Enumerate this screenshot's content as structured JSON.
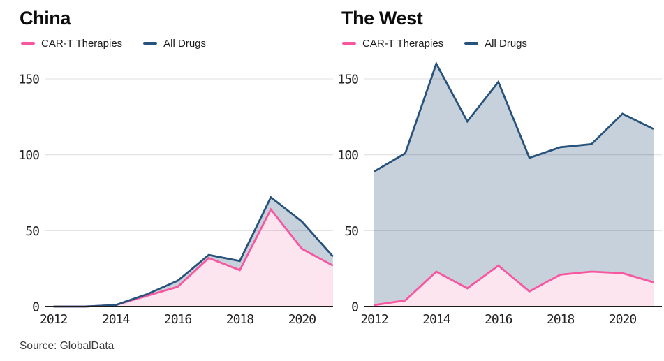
{
  "source_note": "Source: GlobalData",
  "colors": {
    "cart_line": "#f8569f",
    "cart_fill": "#fde5f0",
    "alldrugs_line": "#26527b",
    "alldrugs_fill": "#c7d1dc",
    "gridline": "rgba(0,0,0,0.10)",
    "axis_line": "#1b1b1b"
  },
  "chart_data": [
    {
      "type": "area",
      "title": "China",
      "x": [
        2012,
        2013,
        2014,
        2015,
        2016,
        2017,
        2018,
        2019,
        2020,
        2021
      ],
      "x_ticks": [
        2012,
        2014,
        2016,
        2018,
        2020
      ],
      "y_ticks": [
        0,
        50,
        100,
        150
      ],
      "ylim": [
        0,
        163
      ],
      "grid": "horizontal",
      "legend_position": "top-left",
      "series": [
        {
          "name": "CAR-T Therapies",
          "line_color": "#f8569f",
          "fill_color": "#fde5f0",
          "values": [
            0,
            0,
            1,
            7,
            13,
            32,
            24,
            64,
            38,
            27
          ]
        },
        {
          "name": "All Drugs",
          "line_color": "#26527b",
          "fill_color": "#c7d1dc",
          "values": [
            0,
            0,
            1,
            8,
            17,
            34,
            30,
            72,
            56,
            33
          ]
        }
      ]
    },
    {
      "type": "area",
      "title": "The West",
      "x": [
        2012,
        2013,
        2014,
        2015,
        2016,
        2017,
        2018,
        2019,
        2020,
        2021
      ],
      "x_ticks": [
        2012,
        2014,
        2016,
        2018,
        2020
      ],
      "y_ticks": [
        0,
        50,
        100,
        150
      ],
      "ylim": [
        0,
        163
      ],
      "grid": "horizontal",
      "legend_position": "top-left",
      "series": [
        {
          "name": "CAR-T Therapies",
          "line_color": "#f8569f",
          "fill_color": "#fde5f0",
          "values": [
            1,
            4,
            23,
            12,
            27,
            10,
            21,
            23,
            22,
            16
          ]
        },
        {
          "name": "All Drugs",
          "line_color": "#26527b",
          "fill_color": "#c7d1dc",
          "values": [
            89,
            101,
            160,
            122,
            148,
            98,
            105,
            107,
            127,
            117
          ]
        }
      ]
    }
  ]
}
